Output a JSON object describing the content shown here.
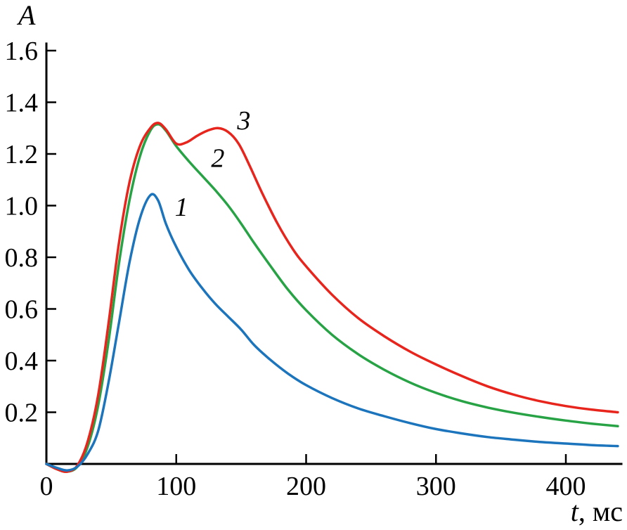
{
  "page": {
    "background": "#ffffff"
  },
  "axis_titles": {
    "y": "A",
    "x_var": "t",
    "x_unit": ", мс"
  },
  "chart_data": {
    "type": "line",
    "title": "",
    "xlabel": "t, мс",
    "ylabel": "A",
    "xlim": [
      0,
      443
    ],
    "ylim": [
      0,
      1.6
    ],
    "grid": false,
    "legend": "none (curves labeled inline as 1, 2, 3)",
    "axis_color": "#000000",
    "x_ticks": {
      "values": [
        0,
        100,
        200,
        300,
        400
      ],
      "labels": [
        "0",
        "100",
        "200",
        "300",
        "400"
      ]
    },
    "y_ticks": {
      "values": [
        0.2,
        0.4,
        0.6,
        0.8,
        1.0,
        1.2,
        1.4,
        1.6
      ],
      "labels": [
        "0.2",
        "0.4",
        "0.6",
        "0.8",
        "1.0",
        "1.2",
        "1.4",
        "1.6"
      ]
    },
    "series": [
      {
        "name": "2",
        "color": "#27a345",
        "label": {
          "text": "2",
          "x": 132,
          "y": 1.15
        },
        "points": [
          [
            0,
            0.0
          ],
          [
            8,
            -0.02
          ],
          [
            16,
            -0.03
          ],
          [
            24,
            -0.01
          ],
          [
            32,
            0.07
          ],
          [
            40,
            0.23
          ],
          [
            48,
            0.48
          ],
          [
            56,
            0.78
          ],
          [
            64,
            1.02
          ],
          [
            72,
            1.19
          ],
          [
            80,
            1.29
          ],
          [
            86,
            1.315
          ],
          [
            92,
            1.29
          ],
          [
            100,
            1.23
          ],
          [
            110,
            1.17
          ],
          [
            120,
            1.115
          ],
          [
            130,
            1.06
          ],
          [
            140,
            1.0
          ],
          [
            150,
            0.93
          ],
          [
            160,
            0.855
          ],
          [
            172,
            0.77
          ],
          [
            186,
            0.675
          ],
          [
            200,
            0.595
          ],
          [
            220,
            0.5
          ],
          [
            240,
            0.425
          ],
          [
            260,
            0.365
          ],
          [
            280,
            0.315
          ],
          [
            300,
            0.275
          ],
          [
            320,
            0.243
          ],
          [
            340,
            0.218
          ],
          [
            360,
            0.198
          ],
          [
            380,
            0.182
          ],
          [
            400,
            0.168
          ],
          [
            420,
            0.156
          ],
          [
            440,
            0.146
          ]
        ]
      },
      {
        "name": "3",
        "color": "#e8251d",
        "label": {
          "text": "3",
          "x": 152,
          "y": 1.295
        },
        "points": [
          [
            0,
            0.0
          ],
          [
            8,
            -0.02
          ],
          [
            16,
            -0.03
          ],
          [
            24,
            -0.005
          ],
          [
            32,
            0.09
          ],
          [
            40,
            0.27
          ],
          [
            48,
            0.55
          ],
          [
            56,
            0.86
          ],
          [
            64,
            1.09
          ],
          [
            72,
            1.23
          ],
          [
            80,
            1.3
          ],
          [
            86,
            1.32
          ],
          [
            92,
            1.295
          ],
          [
            100,
            1.24
          ],
          [
            108,
            1.245
          ],
          [
            116,
            1.27
          ],
          [
            124,
            1.29
          ],
          [
            132,
            1.3
          ],
          [
            140,
            1.285
          ],
          [
            148,
            1.24
          ],
          [
            156,
            1.16
          ],
          [
            166,
            1.05
          ],
          [
            178,
            0.93
          ],
          [
            190,
            0.83
          ],
          [
            200,
            0.765
          ],
          [
            220,
            0.655
          ],
          [
            240,
            0.565
          ],
          [
            260,
            0.495
          ],
          [
            280,
            0.435
          ],
          [
            300,
            0.385
          ],
          [
            320,
            0.34
          ],
          [
            340,
            0.3
          ],
          [
            360,
            0.268
          ],
          [
            380,
            0.243
          ],
          [
            400,
            0.224
          ],
          [
            420,
            0.21
          ],
          [
            440,
            0.2
          ]
        ]
      },
      {
        "name": "1",
        "color": "#1c75bc",
        "label": {
          "text": "1",
          "x": 104,
          "y": 0.96
        },
        "points": [
          [
            0,
            0.0
          ],
          [
            8,
            -0.015
          ],
          [
            16,
            -0.025
          ],
          [
            24,
            -0.01
          ],
          [
            32,
            0.04
          ],
          [
            40,
            0.13
          ],
          [
            48,
            0.32
          ],
          [
            56,
            0.55
          ],
          [
            64,
            0.78
          ],
          [
            72,
            0.95
          ],
          [
            80,
            1.04
          ],
          [
            86,
            1.02
          ],
          [
            92,
            0.93
          ],
          [
            100,
            0.84
          ],
          [
            110,
            0.75
          ],
          [
            120,
            0.68
          ],
          [
            130,
            0.62
          ],
          [
            140,
            0.57
          ],
          [
            150,
            0.52
          ],
          [
            160,
            0.46
          ],
          [
            172,
            0.405
          ],
          [
            186,
            0.35
          ],
          [
            200,
            0.305
          ],
          [
            220,
            0.255
          ],
          [
            240,
            0.215
          ],
          [
            260,
            0.185
          ],
          [
            280,
            0.158
          ],
          [
            300,
            0.135
          ],
          [
            320,
            0.118
          ],
          [
            340,
            0.104
          ],
          [
            360,
            0.094
          ],
          [
            380,
            0.085
          ],
          [
            400,
            0.079
          ],
          [
            420,
            0.073
          ],
          [
            440,
            0.069
          ]
        ]
      }
    ]
  }
}
